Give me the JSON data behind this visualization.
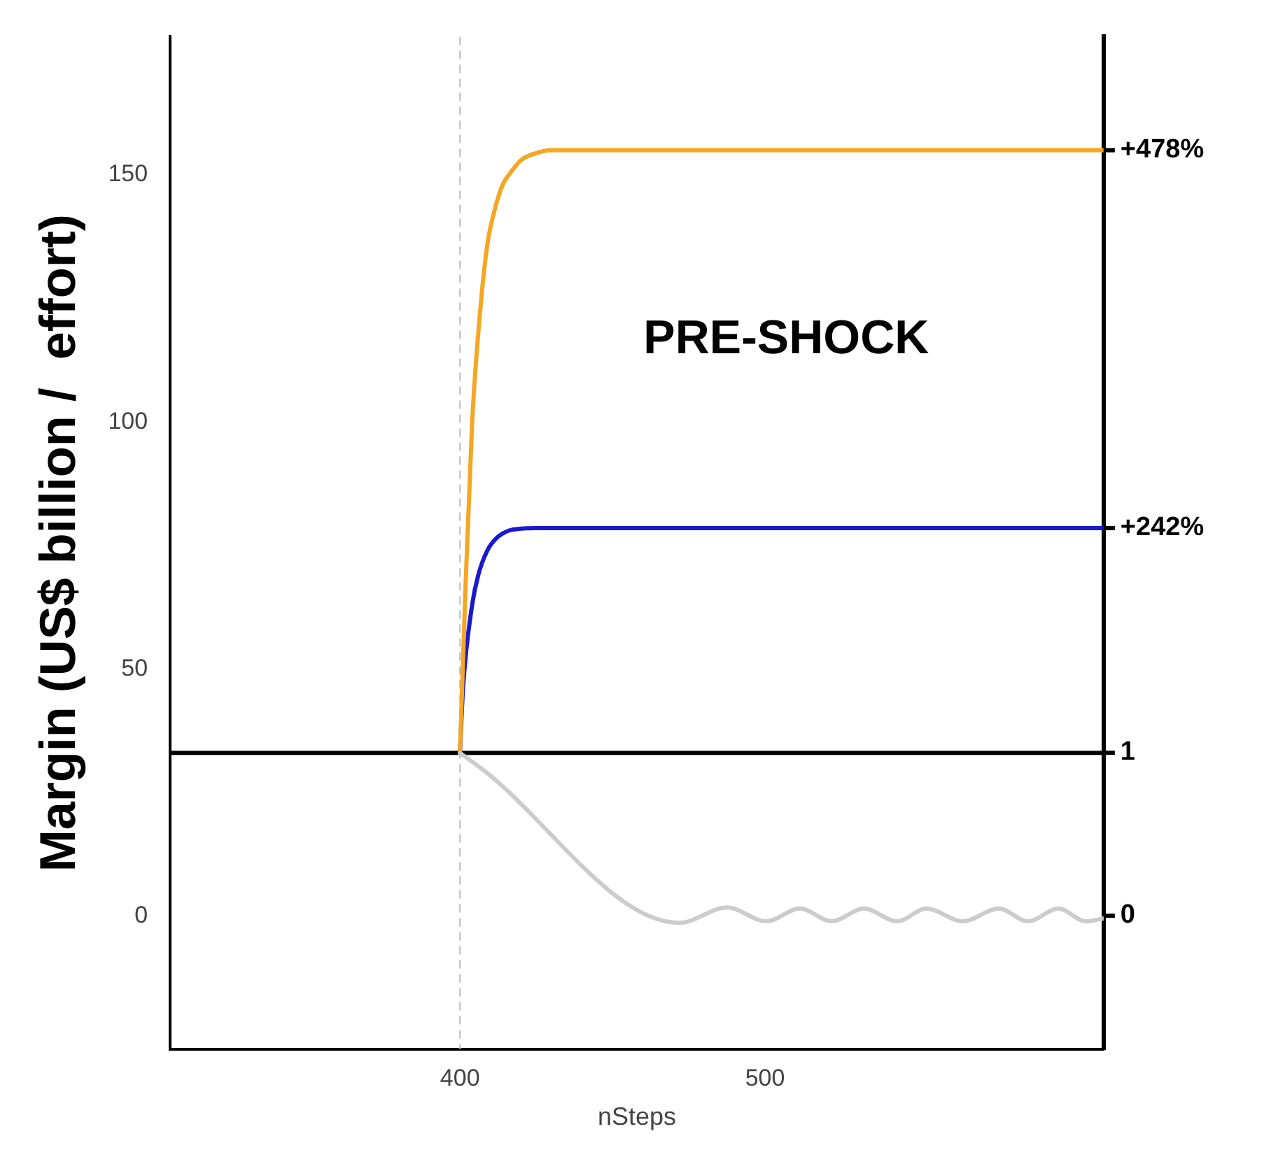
{
  "chart_data": {
    "type": "line",
    "xlabel": "nSteps",
    "ylabel": "Margin (US$ billion /  effort)",
    "annotations": [
      "PRE-SHOCK",
      "+478%",
      "+242%"
    ],
    "y2lim": [
      -0.82,
      5.39
    ],
    "y2ticks": [
      0,
      1
    ],
    "xlim": [
      305,
      611
    ],
    "xticks": [
      400,
      500
    ],
    "ylim": [
      -27,
      178
    ],
    "yticks": [
      0,
      50,
      100,
      150
    ],
    "ref_lines": [
      {
        "axis": "y",
        "value": 33,
        "color": "#000000",
        "line_style": "solid"
      },
      {
        "axis": "x",
        "value": 400,
        "color": "#bbbbbb",
        "line_style": "dashed"
      }
    ],
    "grid": false,
    "legend": false,
    "marker": "none",
    "line_style": "solid",
    "series": [
      {
        "color": "#cccccc",
        "x": [
          400,
          406.7,
          471.9,
          487.6,
          500.5,
          511.4,
          521.9,
          532.4,
          543.3,
          552.9,
          564.8,
          576.7,
          586.2,
          596.2,
          605.2,
          611
        ],
        "values": [
          33,
          30,
          -1.4,
          1.7,
          -1.1,
          1.5,
          -1.1,
          1.5,
          -1.1,
          1.5,
          -1.1,
          1.5,
          -1.1,
          1.5,
          -1.1,
          -0.5
        ]
      },
      {
        "color": "#f5a623",
        "x": [
          400,
          401.9,
          404,
          406.7,
          409,
          411.4,
          414,
          416,
          420,
          423,
          430,
          437.6,
          611
        ],
        "values": [
          33,
          68,
          100,
          123,
          136,
          143,
          148,
          150,
          153,
          154,
          155,
          155,
          155
        ]
      },
      {
        "color": "#1a1acc",
        "x": [
          400,
          401,
          404,
          406,
          409,
          412,
          416,
          420,
          426,
          611
        ],
        "values": [
          33,
          46,
          63,
          69,
          74,
          76.5,
          78,
          78.4,
          78.5,
          78.5
        ]
      }
    ]
  }
}
